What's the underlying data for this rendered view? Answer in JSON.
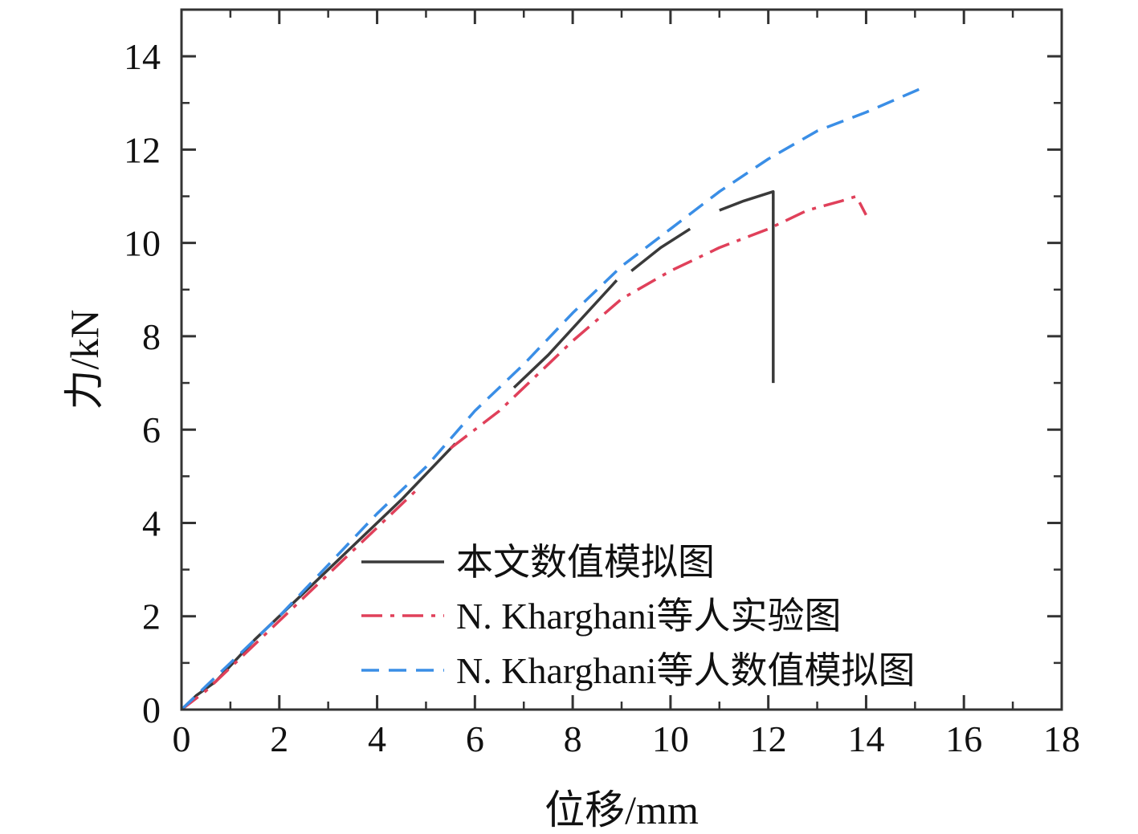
{
  "chart_data": {
    "type": "line",
    "title": "",
    "xlabel": "位移/mm",
    "ylabel": "力/kN",
    "xlim": [
      0,
      18
    ],
    "ylim": [
      0,
      15
    ],
    "xticks": [
      0,
      2,
      4,
      6,
      8,
      10,
      12,
      14,
      16,
      18
    ],
    "yticks": [
      0,
      2,
      4,
      6,
      8,
      10,
      12,
      14
    ],
    "xtick_labels": [
      "0",
      "2",
      "4",
      "6",
      "8",
      "10",
      "12",
      "14",
      "16",
      "18"
    ],
    "ytick_labels": [
      "0",
      "2",
      "4",
      "6",
      "8",
      "10",
      "12",
      "14"
    ],
    "grid": false,
    "legend_position": "bottom-right",
    "series": [
      {
        "name": "本文数值模拟图",
        "color": "#3a3a3a",
        "style": "solid",
        "segments": [
          [
            [
              0,
              0
            ],
            [
              0.3,
              0.3
            ],
            [
              0.7,
              0.6
            ],
            [
              1.5,
              1.5
            ],
            [
              2.5,
              2.5
            ],
            [
              3.5,
              3.5
            ],
            [
              4.5,
              4.5
            ],
            [
              5.6,
              5.7
            ]
          ],
          [
            [
              6.8,
              6.9
            ],
            [
              7.5,
              7.6
            ],
            [
              8.2,
              8.4
            ],
            [
              8.9,
              9.2
            ]
          ],
          [
            [
              9.2,
              9.4
            ],
            [
              9.8,
              9.9
            ],
            [
              10.4,
              10.3
            ]
          ],
          [
            [
              11.0,
              10.7
            ],
            [
              11.5,
              10.9
            ],
            [
              12.1,
              11.1
            ],
            [
              12.1,
              7.0
            ]
          ]
        ]
      },
      {
        "name": "N. Kharghani等人实验图",
        "color": "#e0405a",
        "style": "dashdot",
        "segments": [
          [
            [
              0,
              0
            ],
            [
              0.5,
              0.4
            ],
            [
              1.0,
              0.9
            ],
            [
              2.0,
              1.9
            ],
            [
              3.0,
              2.9
            ],
            [
              4.0,
              3.9
            ],
            [
              4.8,
              4.7
            ]
          ],
          [
            [
              5.5,
              5.6
            ],
            [
              6.5,
              6.4
            ],
            [
              7.5,
              7.4
            ],
            [
              8.0,
              7.9
            ],
            [
              9.0,
              8.8
            ],
            [
              10.0,
              9.4
            ],
            [
              11.0,
              9.9
            ],
            [
              12.0,
              10.3
            ],
            [
              12.8,
              10.7
            ],
            [
              13.5,
              10.9
            ],
            [
              13.8,
              11.0
            ],
            [
              14.0,
              10.6
            ]
          ]
        ]
      },
      {
        "name": "N. Kharghani等人数值模拟图",
        "color": "#3a8ee6",
        "style": "dashed",
        "segments": [
          [
            [
              0,
              0
            ],
            [
              0.5,
              0.5
            ],
            [
              1.0,
              1.0
            ],
            [
              2.0,
              2.0
            ],
            [
              3.0,
              3.1
            ],
            [
              4.0,
              4.2
            ],
            [
              5.0,
              5.2
            ],
            [
              6.0,
              6.4
            ],
            [
              7.0,
              7.4
            ],
            [
              8.0,
              8.5
            ],
            [
              9.0,
              9.5
            ],
            [
              10.0,
              10.3
            ],
            [
              11.0,
              11.1
            ],
            [
              12.0,
              11.8
            ],
            [
              13.0,
              12.4
            ],
            [
              14.0,
              12.8
            ],
            [
              15.1,
              13.3
            ]
          ]
        ]
      }
    ]
  }
}
